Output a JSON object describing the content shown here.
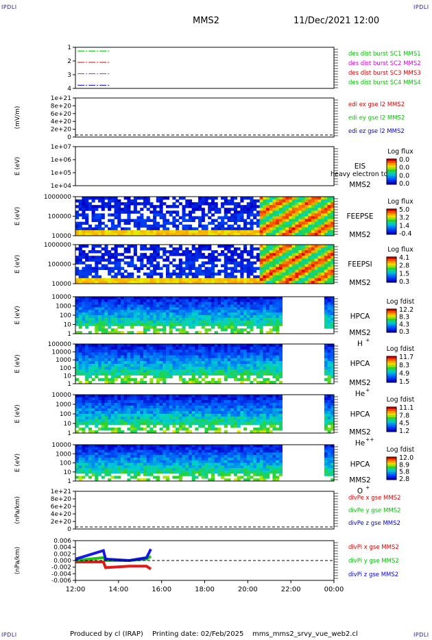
{
  "header": {
    "corner_label": "IPDLI",
    "spacecraft": "MMS2",
    "datetime": "11/Dec/2021 12:00"
  },
  "footer": {
    "produced_by": "Produced by cl (IRAP)",
    "printing_date": "Printing date: 02/Feb/2025",
    "filename": "mms_mms2_srvy_vue_web2.cl"
  },
  "time_axis": {
    "start_hour": 12,
    "end_hour": 24,
    "tick_labels": [
      "12:00",
      "14:00",
      "16:00",
      "18:00",
      "20:00",
      "22:00",
      "00:00"
    ]
  },
  "chart_data": [
    {
      "id": "des-burst",
      "type": "line",
      "y_ticks": [
        "1",
        "2",
        "3",
        "4"
      ],
      "ylabel": "",
      "legend": [
        {
          "name": "des dist burst SC1 MMS1",
          "color": "#00c000"
        },
        {
          "name": "des dist burst SC2 MMS2",
          "color": "#e000e0"
        },
        {
          "name": "des dist burst SC3 MMS3",
          "color": "#e00000"
        },
        {
          "name": "des dist burst SC4 MMS4",
          "color": "#00c000"
        }
      ],
      "series": [
        {
          "level": 4,
          "color": "#00c000",
          "x": [
            12.1,
            13.6
          ]
        },
        {
          "level": 3,
          "color": "#e00000",
          "x": [
            12.1,
            13.6
          ]
        },
        {
          "level": 2,
          "color": "#e000e0",
          "x": [
            12.1,
            13.6
          ]
        },
        {
          "level": 1,
          "color": "#0000e0",
          "x": [
            12.1,
            13.6
          ]
        }
      ]
    },
    {
      "id": "edi",
      "type": "line",
      "ylabel": "(mV/m)",
      "y_ticks": [
        "1e+21",
        "8e+20",
        "6e+20",
        "4e+20",
        "2e+20",
        "0"
      ],
      "legend": [
        {
          "name": "edi ex gse l2 MMS2",
          "color": "#e00000"
        },
        {
          "name": "edi ey gse l2 MMS2",
          "color": "#00c000"
        },
        {
          "name": "edi ez gse l2 MMS2",
          "color": "#0000e0"
        }
      ]
    },
    {
      "id": "eis",
      "type": "heatmap",
      "ylabel": "E (eV)",
      "y_ticks": [
        "1e+07",
        "1e+06",
        "1e+05",
        "1e+04"
      ],
      "instrument": [
        "EIS",
        "MMS2"
      ],
      "overlay_text": "heavy electron to",
      "colorbar": {
        "title": "Log flux",
        "labels": [
          "0.0",
          "0.0",
          "0.0",
          "0.0"
        ]
      }
    },
    {
      "id": "feeps-e",
      "type": "heatmap",
      "ylabel": "E (eV)",
      "y_ticks": [
        "1000000",
        "100000",
        "10000"
      ],
      "instrument": [
        "FEEPSE",
        "MMS2"
      ],
      "colorbar": {
        "title": "Log flux",
        "labels": [
          "5.0",
          "3.2",
          "1.4",
          "-0.4"
        ]
      },
      "profile": {
        "hours": [
          12,
          20.6,
          21.0,
          24
        ],
        "levels": [
          0.25,
          0.3,
          0.9,
          0.8
        ]
      }
    },
    {
      "id": "feeps-i",
      "type": "heatmap",
      "ylabel": "E (eV)",
      "y_ticks": [
        "1000000",
        "100000",
        "10000"
      ],
      "instrument": [
        "FEEPSI",
        "MMS2"
      ],
      "colorbar": {
        "title": "Log flux",
        "labels": [
          "4.1",
          "2.8",
          "1.5",
          "0.3"
        ]
      },
      "profile": {
        "hours": [
          12,
          20.6,
          21.0,
          24
        ],
        "levels": [
          0.15,
          0.2,
          0.9,
          0.8
        ]
      }
    },
    {
      "id": "hpca-h",
      "type": "heatmap",
      "ylabel": "E (eV)",
      "y_ticks": [
        "10000",
        "1000",
        "100",
        "10",
        "1"
      ],
      "instrument": [
        "HPCA",
        "MMS2",
        "H",
        "+"
      ],
      "colorbar": {
        "title": "Log fdist",
        "labels": [
          "12.2",
          "8.3",
          "4.3",
          "0.3"
        ]
      },
      "data_gaps": [
        [
          21.6,
          23.6
        ]
      ]
    },
    {
      "id": "hpca-he1",
      "type": "heatmap",
      "ylabel": "E (eV)",
      "y_ticks": [
        "100000",
        "10000",
        "1000",
        "100",
        "10",
        "1"
      ],
      "instrument": [
        "HPCA",
        "MMS2",
        "He",
        "+"
      ],
      "colorbar": {
        "title": "Log fdist",
        "labels": [
          "11.7",
          "8.3",
          "4.9",
          "1.5"
        ]
      },
      "data_gaps": [
        [
          21.6,
          23.6
        ]
      ]
    },
    {
      "id": "hpca-he2",
      "type": "heatmap",
      "ylabel": "E (eV)",
      "y_ticks": [
        "10000",
        "1000",
        "100",
        "10",
        "1"
      ],
      "instrument": [
        "HPCA",
        "MMS2",
        "He",
        "++"
      ],
      "colorbar": {
        "title": "Log fdist",
        "labels": [
          "11.1",
          "7.8",
          "4.5",
          "1.2"
        ]
      },
      "data_gaps": [
        [
          21.6,
          23.6
        ]
      ]
    },
    {
      "id": "hpca-o",
      "type": "heatmap",
      "ylabel": "E (eV)",
      "y_ticks": [
        "10000",
        "1000",
        "100",
        "10",
        "1"
      ],
      "instrument": [
        "HPCA",
        "MMS2",
        "O",
        "+"
      ],
      "colorbar": {
        "title": "Log fdist",
        "labels": [
          "12.0",
          "8.9",
          "5.8",
          "2.8"
        ]
      },
      "data_gaps": [
        [
          21.6,
          23.6
        ]
      ]
    },
    {
      "id": "divpe",
      "type": "line",
      "ylabel": "(nPa/km)",
      "y_ticks": [
        "1e+21",
        "8e+20",
        "6e+20",
        "4e+20",
        "2e+20",
        "0"
      ],
      "legend": [
        {
          "name": "divPe x gse MMS2",
          "color": "#e00000"
        },
        {
          "name": "divPe y gse MMS2",
          "color": "#00c000"
        },
        {
          "name": "divPe z gse MMS2",
          "color": "#0000e0"
        }
      ]
    },
    {
      "id": "divpi",
      "type": "line",
      "ylabel": "(nPa/km)",
      "y_ticks": [
        "0.006",
        "0.004",
        "0.002",
        "0.000",
        "-0.002",
        "-0.004",
        "-0.006"
      ],
      "ylim": [
        -0.007,
        0.007
      ],
      "legend": [
        {
          "name": "divPi x gse MMS2",
          "color": "#e00000"
        },
        {
          "name": "divPi y gse MMS2",
          "color": "#00c000"
        },
        {
          "name": "divPi z gse MMS2",
          "color": "#0000e0"
        }
      ],
      "series": [
        {
          "name": "divPi x gse MMS2",
          "color": "#e00000",
          "x": [
            12,
            13.3,
            13.4,
            14.5,
            15.3,
            15.5
          ],
          "y": [
            -0.0005,
            -0.0005,
            -0.0025,
            -0.002,
            -0.002,
            -0.003
          ]
        },
        {
          "name": "divPi y gse MMS2",
          "color": "#00c000",
          "x": [
            12,
            13.3,
            13.4,
            14.5,
            15.3,
            15.5
          ],
          "y": [
            0.0,
            0.001,
            0.0,
            0.0,
            0.0005,
            0.0015
          ]
        },
        {
          "name": "divPi z gse MMS2",
          "color": "#0000e0",
          "x": [
            12,
            13.3,
            13.4,
            14.5,
            15.3,
            15.5
          ],
          "y": [
            0.0005,
            0.0035,
            0.0005,
            0.0,
            0.001,
            0.004
          ]
        }
      ]
    }
  ]
}
